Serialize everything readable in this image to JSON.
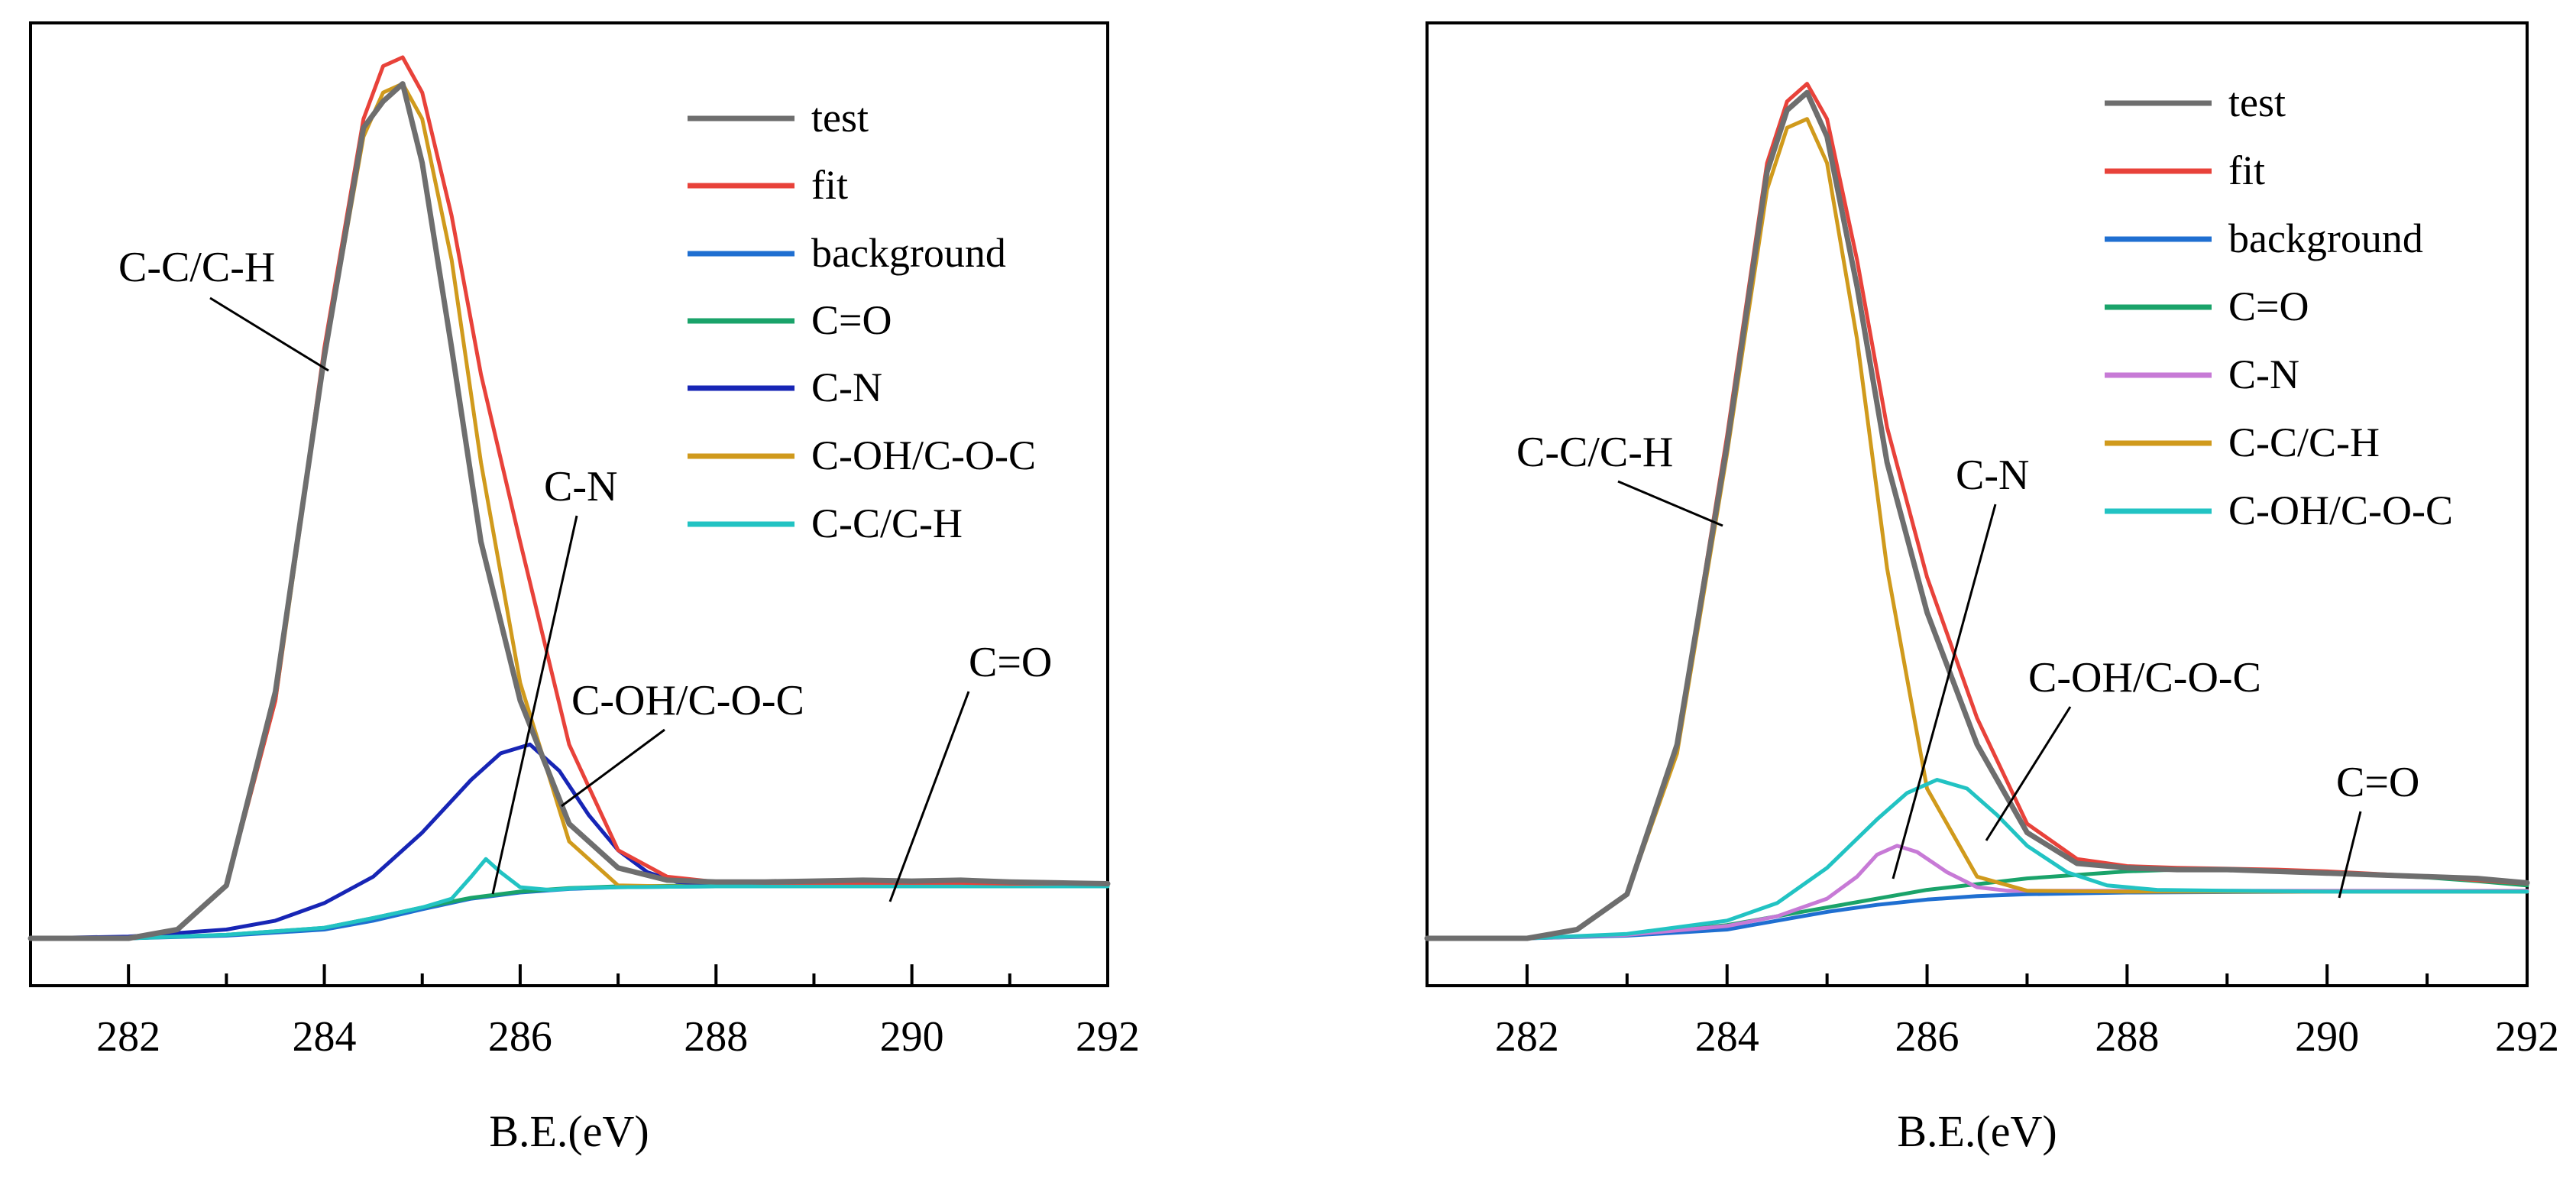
{
  "chart_data": [
    {
      "type": "line",
      "xlabel": "B.E.(eV)",
      "ylabel": "",
      "xlim": [
        281,
        292
      ],
      "ylim": [
        0,
        1.05
      ],
      "xticks": [
        "282",
        "284",
        "286",
        "288",
        "290",
        "292"
      ],
      "legend_position": "top-right",
      "series": [
        {
          "name": "test",
          "color": "#6e6e6e",
          "x": [
            281,
            282,
            282.5,
            283,
            283.5,
            284,
            284.4,
            284.6,
            284.8,
            285.0,
            285.3,
            285.6,
            286.0,
            286.5,
            287,
            287.5,
            288,
            288.5,
            289,
            289.5,
            290,
            290.5,
            291,
            291.5,
            292
          ],
          "y": [
            0.0,
            0.0,
            0.01,
            0.06,
            0.28,
            0.66,
            0.92,
            0.95,
            0.97,
            0.88,
            0.67,
            0.45,
            0.27,
            0.13,
            0.08,
            0.066,
            0.064,
            0.064,
            0.065,
            0.066,
            0.065,
            0.066,
            0.064,
            0.063,
            0.062
          ]
        },
        {
          "name": "fit",
          "color": "#e8423a",
          "x": [
            281,
            282,
            282.5,
            283,
            283.5,
            284,
            284.4,
            284.6,
            284.8,
            285.0,
            285.3,
            285.6,
            286.0,
            286.5,
            287,
            287.5,
            288,
            288.5,
            289,
            289.5,
            290,
            290.5,
            291,
            291.5,
            292
          ],
          "y": [
            0.0,
            0.0,
            0.01,
            0.06,
            0.27,
            0.67,
            0.93,
            0.99,
            1.0,
            0.96,
            0.82,
            0.64,
            0.45,
            0.22,
            0.1,
            0.07,
            0.064,
            0.063,
            0.063,
            0.063,
            0.063,
            0.063,
            0.062,
            0.062,
            0.062
          ]
        },
        {
          "name": "background",
          "color": "#1f6fd1",
          "x": [
            281,
            282,
            283,
            284,
            284.5,
            285,
            285.5,
            286,
            286.5,
            287,
            288,
            290,
            292
          ],
          "y": [
            0.0,
            0.0,
            0.003,
            0.01,
            0.02,
            0.033,
            0.045,
            0.052,
            0.056,
            0.058,
            0.059,
            0.059,
            0.059
          ]
        },
        {
          "name": "C=O",
          "color": "#1aa36a",
          "x": [
            281,
            282,
            283,
            284,
            284.5,
            285,
            285.5,
            286,
            286.5,
            287,
            288,
            290,
            292
          ],
          "y": [
            0.0,
            0.0,
            0.004,
            0.012,
            0.023,
            0.035,
            0.046,
            0.053,
            0.057,
            0.059,
            0.06,
            0.06,
            0.06
          ]
        },
        {
          "name": "C-N",
          "color": "#1725b5",
          "x": [
            281,
            282,
            283,
            283.5,
            284,
            284.5,
            285,
            285.5,
            285.8,
            286.1,
            286.4,
            286.7,
            287,
            287.3,
            287.6,
            288,
            289,
            290,
            292
          ],
          "y": [
            0.0,
            0.002,
            0.01,
            0.02,
            0.04,
            0.07,
            0.12,
            0.18,
            0.21,
            0.22,
            0.19,
            0.14,
            0.1,
            0.075,
            0.064,
            0.061,
            0.06,
            0.06,
            0.06
          ]
        },
        {
          "name": "C-OH/C-O-C",
          "color": "#d09a1c",
          "x": [
            281,
            282,
            282.5,
            283,
            283.5,
            284,
            284.4,
            284.6,
            284.8,
            285.0,
            285.3,
            285.6,
            286.0,
            286.5,
            287,
            287.5,
            288,
            289,
            290,
            292
          ],
          "y": [
            0.0,
            0.0,
            0.01,
            0.06,
            0.27,
            0.66,
            0.91,
            0.96,
            0.97,
            0.93,
            0.77,
            0.54,
            0.29,
            0.11,
            0.06,
            0.059,
            0.059,
            0.059,
            0.059,
            0.059
          ]
        },
        {
          "name": "C-C/C-H",
          "color": "#22c3c3",
          "x": [
            281,
            282,
            283,
            284,
            284.5,
            285,
            285.3,
            285.5,
            285.65,
            285.8,
            286.0,
            286.3,
            286.6,
            287,
            288,
            290,
            292
          ],
          "y": [
            0.0,
            0.0,
            0.004,
            0.012,
            0.023,
            0.035,
            0.045,
            0.07,
            0.09,
            0.075,
            0.058,
            0.055,
            0.057,
            0.058,
            0.059,
            0.059,
            0.059
          ]
        }
      ],
      "annotations": [
        {
          "text": "C-C/C-H"
        },
        {
          "text": "C-N"
        },
        {
          "text": "C-OH/C-O-C"
        },
        {
          "text": "C=O"
        }
      ]
    },
    {
      "type": "line",
      "xlabel": "B.E.(eV)",
      "ylabel": "",
      "xlim": [
        281,
        292
      ],
      "ylim": [
        0,
        1.05
      ],
      "xticks": [
        "282",
        "284",
        "286",
        "288",
        "290",
        "292"
      ],
      "legend_position": "top-right",
      "series": [
        {
          "name": "test",
          "color": "#6e6e6e",
          "x": [
            281,
            282,
            282.5,
            283,
            283.5,
            284,
            284.4,
            284.6,
            284.8,
            285.0,
            285.3,
            285.6,
            286.0,
            286.5,
            287,
            287.5,
            288,
            288.5,
            289,
            289.5,
            290,
            290.5,
            291,
            291.5,
            292
          ],
          "y": [
            0.0,
            0.0,
            0.01,
            0.05,
            0.22,
            0.56,
            0.87,
            0.94,
            0.96,
            0.91,
            0.74,
            0.54,
            0.37,
            0.22,
            0.12,
            0.085,
            0.08,
            0.078,
            0.078,
            0.076,
            0.074,
            0.072,
            0.07,
            0.068,
            0.063
          ]
        },
        {
          "name": "fit",
          "color": "#e8423a",
          "x": [
            281,
            282,
            282.5,
            283,
            283.5,
            284,
            284.4,
            284.6,
            284.8,
            285.0,
            285.3,
            285.6,
            286.0,
            286.5,
            287,
            287.5,
            288,
            288.5,
            289,
            289.5,
            290,
            290.5,
            291,
            291.5,
            292
          ],
          "y": [
            0.0,
            0.0,
            0.01,
            0.05,
            0.22,
            0.57,
            0.88,
            0.95,
            0.97,
            0.93,
            0.77,
            0.58,
            0.41,
            0.25,
            0.13,
            0.09,
            0.082,
            0.08,
            0.079,
            0.078,
            0.076,
            0.073,
            0.07,
            0.066,
            0.062
          ]
        },
        {
          "name": "background",
          "color": "#1f6fd1",
          "x": [
            281,
            282,
            283,
            284,
            284.5,
            285,
            285.5,
            286,
            286.5,
            287,
            288,
            290,
            292
          ],
          "y": [
            0.0,
            0.0,
            0.003,
            0.01,
            0.02,
            0.03,
            0.038,
            0.044,
            0.048,
            0.05,
            0.052,
            0.053,
            0.053
          ]
        },
        {
          "name": "C=O",
          "color": "#1aa36a",
          "x": [
            281,
            282,
            283,
            284,
            285,
            286,
            287,
            288,
            288.5,
            289,
            289.5,
            290,
            290.5,
            291,
            291.5,
            292
          ],
          "y": [
            0.0,
            0.0,
            0.004,
            0.015,
            0.035,
            0.055,
            0.068,
            0.076,
            0.078,
            0.078,
            0.077,
            0.075,
            0.072,
            0.069,
            0.065,
            0.06
          ]
        },
        {
          "name": "C-N",
          "color": "#c77ad6",
          "x": [
            281,
            282,
            283,
            284,
            284.5,
            285,
            285.3,
            285.5,
            285.7,
            285.9,
            286.2,
            286.5,
            286.8,
            287.2,
            288,
            290,
            292
          ],
          "y": [
            0.0,
            0.0,
            0.004,
            0.014,
            0.025,
            0.045,
            0.07,
            0.095,
            0.105,
            0.098,
            0.075,
            0.058,
            0.054,
            0.054,
            0.054,
            0.054,
            0.054
          ]
        },
        {
          "name": "C-C/C-H",
          "color": "#d09a1c",
          "x": [
            281,
            282,
            282.5,
            283,
            283.5,
            284,
            284.4,
            284.6,
            284.8,
            285.0,
            285.3,
            285.6,
            286.0,
            286.5,
            287,
            288,
            290,
            292
          ],
          "y": [
            0.0,
            0.0,
            0.01,
            0.05,
            0.21,
            0.55,
            0.85,
            0.92,
            0.93,
            0.88,
            0.68,
            0.42,
            0.17,
            0.07,
            0.054,
            0.053,
            0.053,
            0.053
          ]
        },
        {
          "name": "C-OH/C-O-C",
          "color": "#22c3c3",
          "x": [
            281,
            282,
            283,
            284,
            284.5,
            285,
            285.5,
            285.8,
            286.1,
            286.4,
            286.7,
            287,
            287.4,
            287.8,
            288.3,
            289,
            290,
            292
          ],
          "y": [
            0.0,
            0.0,
            0.005,
            0.02,
            0.04,
            0.08,
            0.135,
            0.165,
            0.18,
            0.17,
            0.14,
            0.105,
            0.075,
            0.06,
            0.055,
            0.054,
            0.053,
            0.053
          ]
        }
      ],
      "annotations": [
        {
          "text": "C-C/C-H"
        },
        {
          "text": "C-N"
        },
        {
          "text": "C-OH/C-O-C"
        },
        {
          "text": "C=O"
        }
      ]
    }
  ]
}
